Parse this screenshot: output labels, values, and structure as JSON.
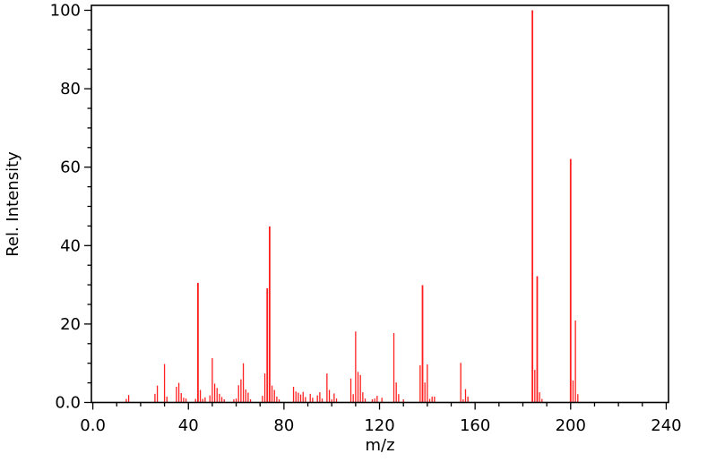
{
  "chart_data": {
    "type": "bar",
    "subtype": "mass-spectrum-stick-plot",
    "title": "",
    "xlabel": "m/z",
    "ylabel": "Rel. Intensity",
    "xlim": [
      0,
      240
    ],
    "ylim": [
      0,
      100
    ],
    "x_major_ticks": [
      0,
      40,
      80,
      120,
      160,
      200,
      240
    ],
    "x_tick_labels": [
      "0.0",
      "40",
      "80",
      "120",
      "160",
      "200",
      "240"
    ],
    "x_minor_step": 10,
    "y_major_ticks": [
      0,
      20,
      40,
      60,
      80,
      100
    ],
    "y_tick_labels": [
      "0.0",
      "20",
      "40",
      "60",
      "80",
      "100"
    ],
    "y_minor_step": 5,
    "grid": false,
    "legend": null,
    "background_color": "#ffffff",
    "axis_color": "#000000",
    "stick_color": "#ff1f1f",
    "peaks": [
      [
        14,
        0.9
      ],
      [
        15,
        1.9
      ],
      [
        26,
        2.2
      ],
      [
        27,
        4.3
      ],
      [
        30,
        9.8
      ],
      [
        31,
        1.5
      ],
      [
        35,
        4.0
      ],
      [
        36,
        5.0
      ],
      [
        37,
        2.4
      ],
      [
        38,
        1.2
      ],
      [
        39,
        1.0
      ],
      [
        43,
        0.9
      ],
      [
        44,
        30.5
      ],
      [
        45,
        3.2
      ],
      [
        46,
        0.9
      ],
      [
        47,
        1.3
      ],
      [
        49,
        1.8
      ],
      [
        50,
        11.3
      ],
      [
        51,
        4.8
      ],
      [
        52,
        3.7
      ],
      [
        53,
        2.2
      ],
      [
        54,
        1.4
      ],
      [
        55,
        0.8
      ],
      [
        59,
        0.8
      ],
      [
        60,
        1.0
      ],
      [
        61,
        4.4
      ],
      [
        62,
        5.9
      ],
      [
        63,
        10.0
      ],
      [
        64,
        3.3
      ],
      [
        65,
        2.5
      ],
      [
        66,
        0.8
      ],
      [
        71,
        1.7
      ],
      [
        72,
        7.4
      ],
      [
        73,
        29.1
      ],
      [
        74,
        44.9
      ],
      [
        75,
        4.3
      ],
      [
        76,
        3.2
      ],
      [
        77,
        1.5
      ],
      [
        78,
        0.8
      ],
      [
        84,
        4.0
      ],
      [
        85,
        2.8
      ],
      [
        86,
        2.5
      ],
      [
        87,
        2.0
      ],
      [
        88,
        2.7
      ],
      [
        89,
        1.4
      ],
      [
        91,
        2.2
      ],
      [
        92,
        1.2
      ],
      [
        94,
        1.8
      ],
      [
        95,
        2.6
      ],
      [
        96,
        1.0
      ],
      [
        98,
        7.4
      ],
      [
        99,
        3.2
      ],
      [
        100,
        0.8
      ],
      [
        101,
        2.3
      ],
      [
        102,
        1.0
      ],
      [
        108,
        6.1
      ],
      [
        109,
        2.1
      ],
      [
        110,
        18.1
      ],
      [
        111,
        7.8
      ],
      [
        112,
        7.0
      ],
      [
        113,
        2.6
      ],
      [
        114,
        1.0
      ],
      [
        117,
        0.8
      ],
      [
        118,
        1.0
      ],
      [
        119,
        1.7
      ],
      [
        121,
        1.2
      ],
      [
        126,
        17.7
      ],
      [
        127,
        5.1
      ],
      [
        128,
        2.1
      ],
      [
        130,
        0.8
      ],
      [
        137,
        9.5
      ],
      [
        138,
        29.9
      ],
      [
        139,
        5.1
      ],
      [
        140,
        9.7
      ],
      [
        141,
        0.9
      ],
      [
        142,
        1.5
      ],
      [
        143,
        1.5
      ],
      [
        154,
        10.1
      ],
      [
        155,
        0.8
      ],
      [
        156,
        3.4
      ],
      [
        157,
        1.5
      ],
      [
        184,
        100.0
      ],
      [
        185,
        8.3
      ],
      [
        186,
        32.2
      ],
      [
        187,
        2.6
      ],
      [
        188,
        0.9
      ],
      [
        200,
        62.1
      ],
      [
        201,
        5.6
      ],
      [
        202,
        20.9
      ],
      [
        203,
        2.1
      ]
    ]
  }
}
